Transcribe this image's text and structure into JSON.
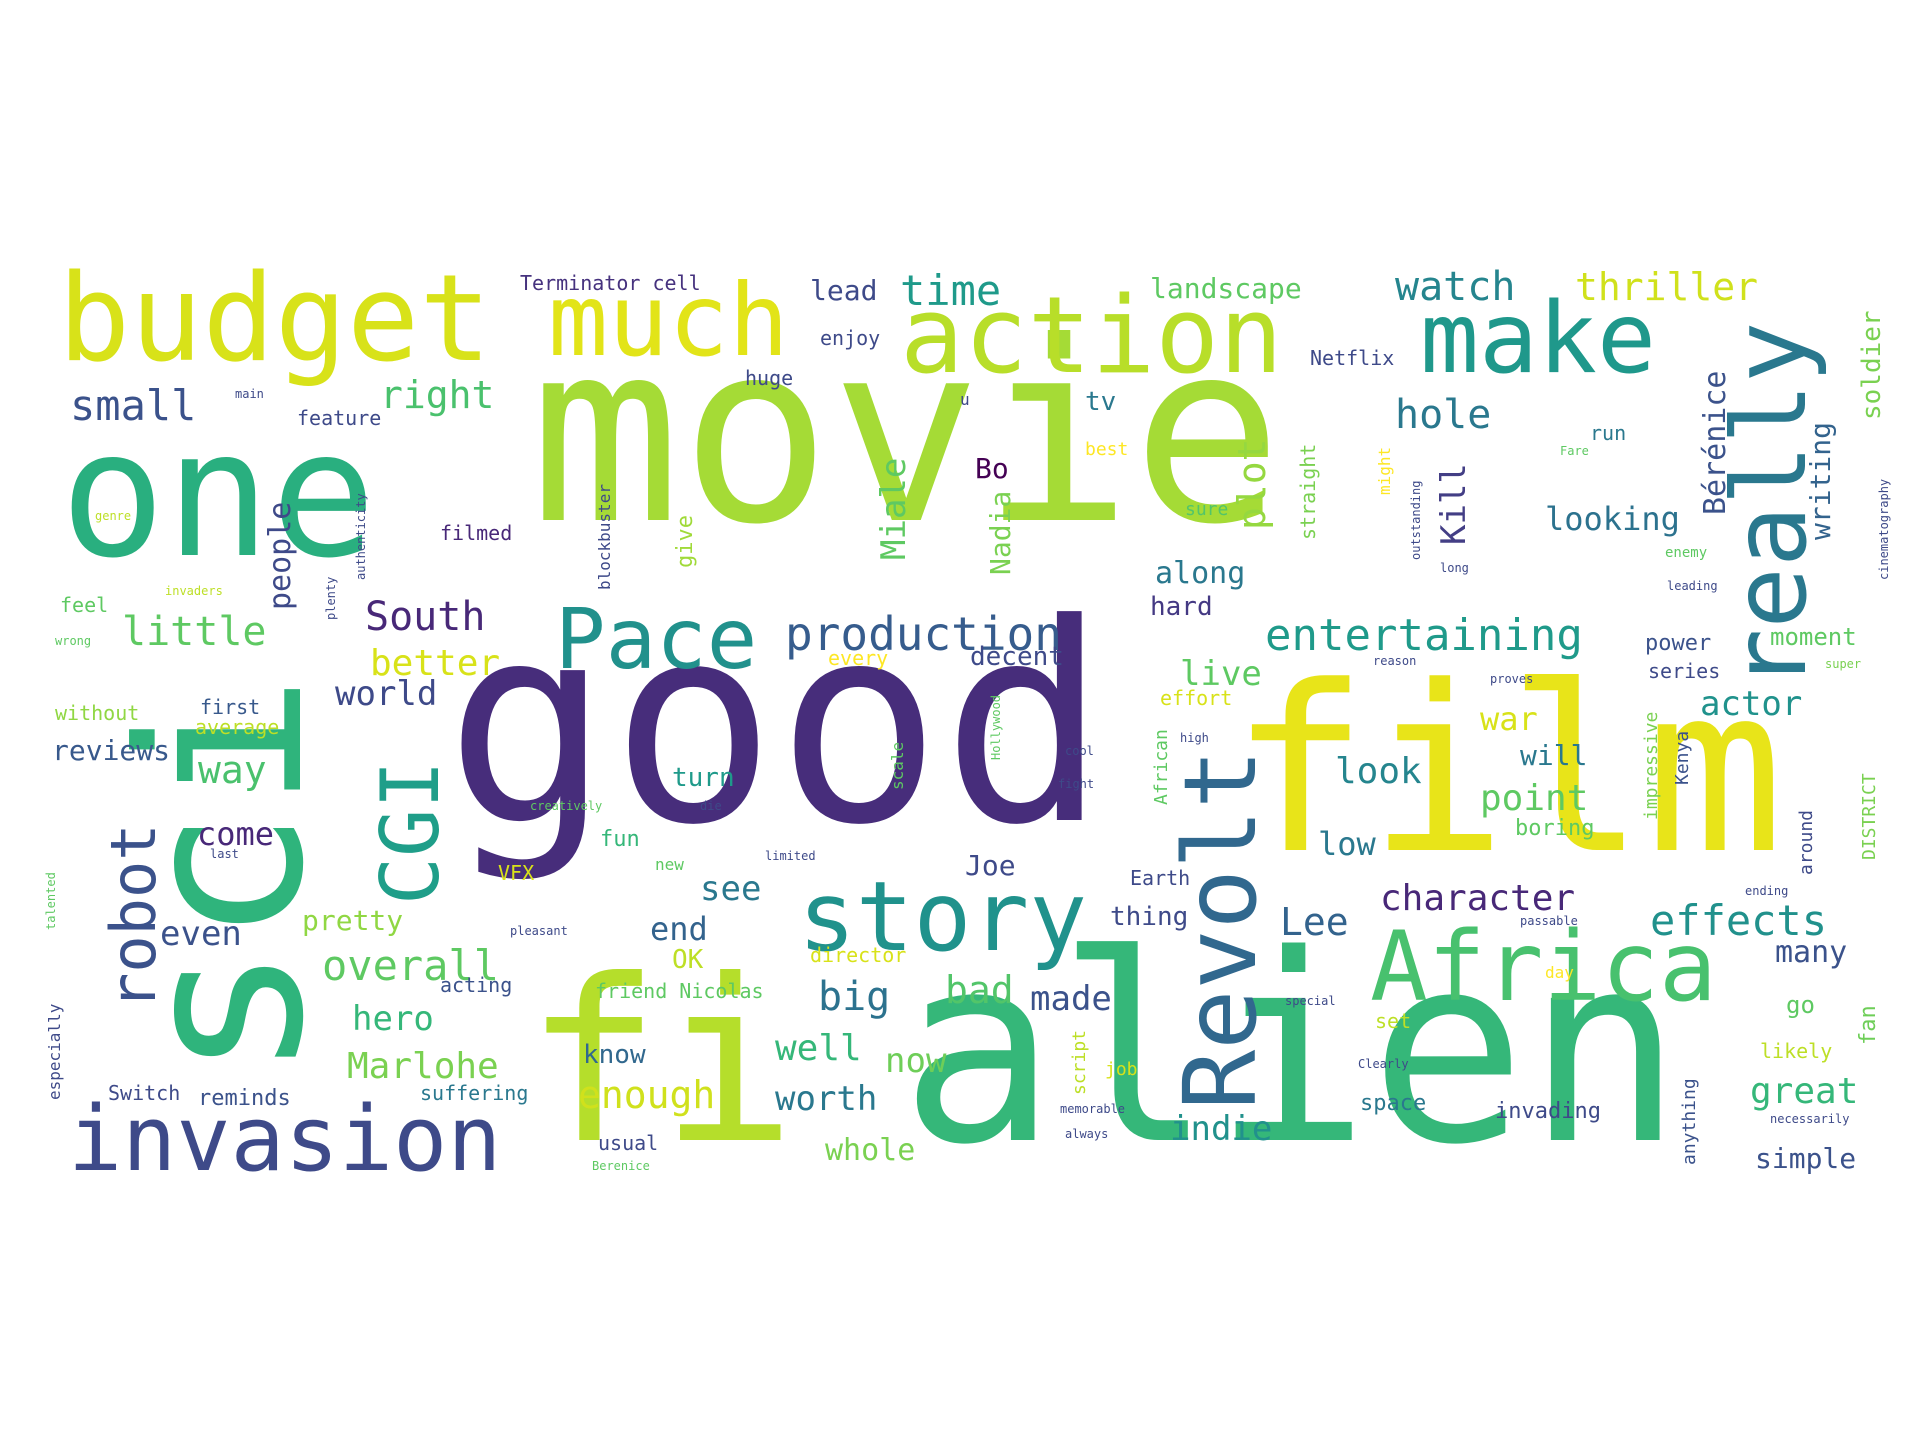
{
  "words": [
    {
      "text": "movie",
      "color": "#a5db36"
    },
    {
      "text": "good",
      "color": "#472d7b"
    },
    {
      "text": "film",
      "color": "#e8e419"
    },
    {
      "text": "alien",
      "color": "#35b779"
    },
    {
      "text": "sci",
      "color": "#2fb47c"
    },
    {
      "text": "fi",
      "color": "#b5de2b"
    },
    {
      "text": "one",
      "color": "#29af7f"
    },
    {
      "text": "budget",
      "color": "#d8e219"
    },
    {
      "text": "much",
      "color": "#e2e418"
    },
    {
      "text": "action",
      "color": "#b8de29"
    },
    {
      "text": "make",
      "color": "#1f988b"
    },
    {
      "text": "really",
      "color": "#2a788e"
    },
    {
      "text": "Revolt",
      "color": "#31688e"
    },
    {
      "text": "Africa",
      "color": "#48c16e"
    },
    {
      "text": "story",
      "color": "#20928c"
    },
    {
      "text": "invasion",
      "color": "#3e4a89"
    },
    {
      "text": "Pace",
      "color": "#21918c"
    },
    {
      "text": "CGI",
      "color": "#1f9e89"
    },
    {
      "text": "robot",
      "color": "#3b528b"
    },
    {
      "text": "production",
      "color": "#365c8d"
    },
    {
      "text": "entertaining",
      "color": "#1f9a8a"
    },
    {
      "text": "small",
      "color": "#3b528b"
    },
    {
      "text": "right",
      "color": "#4ac16d"
    },
    {
      "text": "time",
      "color": "#1f9a8a"
    },
    {
      "text": "watch",
      "color": "#25858e"
    },
    {
      "text": "thriller",
      "color": "#d0e11c"
    },
    {
      "text": "lead",
      "color": "#3e4a89"
    },
    {
      "text": "landscape",
      "color": "#5ec962"
    },
    {
      "text": "Terminator cell",
      "color": "#46327e"
    },
    {
      "text": "hole",
      "color": "#2a788e"
    },
    {
      "text": "plot",
      "color": "#95d840"
    },
    {
      "text": "Kill",
      "color": "#433e85"
    },
    {
      "text": "Bérénice",
      "color": "#3b528b"
    },
    {
      "text": "writing",
      "color": "#33638d"
    },
    {
      "text": "soldier",
      "color": "#7ad151"
    },
    {
      "text": "Miale",
      "color": "#5ec962"
    },
    {
      "text": "Nadia",
      "color": "#7ad151"
    },
    {
      "text": "Bo",
      "color": "#440154"
    },
    {
      "text": "looking",
      "color": "#2c728e"
    },
    {
      "text": "little",
      "color": "#5ec962"
    },
    {
      "text": "South",
      "color": "#482878"
    },
    {
      "text": "better",
      "color": "#d8e219"
    },
    {
      "text": "world",
      "color": "#3e4a89"
    },
    {
      "text": "people",
      "color": "#3e4a89"
    },
    {
      "text": "way",
      "color": "#4ac16d"
    },
    {
      "text": "reviews",
      "color": "#38598c"
    },
    {
      "text": "come",
      "color": "#482878"
    },
    {
      "text": "along",
      "color": "#2a788e"
    },
    {
      "text": "hard",
      "color": "#443983"
    },
    {
      "text": "live",
      "color": "#5ec962"
    },
    {
      "text": "war",
      "color": "#d8e219"
    },
    {
      "text": "actor",
      "color": "#20928c"
    },
    {
      "text": "will",
      "color": "#2a788e"
    },
    {
      "text": "look",
      "color": "#25858e"
    },
    {
      "text": "point",
      "color": "#5ec962"
    },
    {
      "text": "low",
      "color": "#2a788e"
    },
    {
      "text": "Joe",
      "color": "#3e4a89"
    },
    {
      "text": "character",
      "color": "#482878"
    },
    {
      "text": "effects",
      "color": "#21918c"
    },
    {
      "text": "Lee",
      "color": "#33638d"
    },
    {
      "text": "many",
      "color": "#3b528b"
    },
    {
      "text": "overall",
      "color": "#5ec962"
    },
    {
      "text": "even",
      "color": "#3b528b"
    },
    {
      "text": "pretty",
      "color": "#90d743"
    },
    {
      "text": "hero",
      "color": "#35b779"
    },
    {
      "text": "Marlohe",
      "color": "#7ad151"
    },
    {
      "text": "big",
      "color": "#2c728e"
    },
    {
      "text": "bad",
      "color": "#52c569"
    },
    {
      "text": "made",
      "color": "#3b528b"
    },
    {
      "text": "see",
      "color": "#2a788e"
    },
    {
      "text": "end",
      "color": "#33638d"
    },
    {
      "text": "well",
      "color": "#35b779"
    },
    {
      "text": "now",
      "color": "#6ece58"
    },
    {
      "text": "enough",
      "color": "#d0e11c"
    },
    {
      "text": "worth",
      "color": "#2a788e"
    },
    {
      "text": "whole",
      "color": "#7ad151"
    },
    {
      "text": "indie",
      "color": "#21918c"
    },
    {
      "text": "great",
      "color": "#35b779"
    },
    {
      "text": "simple",
      "color": "#3b528b"
    },
    {
      "text": "know",
      "color": "#31688e"
    },
    {
      "text": "OK",
      "color": "#bddf26"
    },
    {
      "text": "decent",
      "color": "#3e4a89"
    },
    {
      "text": "turn",
      "color": "#1f9a8a"
    },
    {
      "text": "fun",
      "color": "#35b779"
    },
    {
      "text": "thing",
      "color": "#3e4a89"
    },
    {
      "text": "Earth",
      "color": "#3e4a89"
    },
    {
      "text": "feature",
      "color": "#3e4a89"
    },
    {
      "text": "enjoy",
      "color": "#3e4a89"
    },
    {
      "text": "huge",
      "color": "#3e4a89"
    },
    {
      "text": "Netflix",
      "color": "#3e4a89"
    },
    {
      "text": "tv",
      "color": "#2a788e"
    },
    {
      "text": "filmed",
      "color": "#482878"
    },
    {
      "text": "feel",
      "color": "#5ec962"
    },
    {
      "text": "without",
      "color": "#90d743"
    },
    {
      "text": "first",
      "color": "#38598c"
    },
    {
      "text": "average",
      "color": "#bddf26"
    },
    {
      "text": "acting",
      "color": "#3b528b"
    },
    {
      "text": "friend Nicolas",
      "color": "#5ec962"
    },
    {
      "text": "director",
      "color": "#d8e219"
    },
    {
      "text": "reminds",
      "color": "#3b528b"
    },
    {
      "text": "suffering",
      "color": "#2a788e"
    },
    {
      "text": "Switch",
      "color": "#3e4a89"
    },
    {
      "text": "usual",
      "color": "#3e4a89"
    },
    {
      "text": "space",
      "color": "#2a788e"
    },
    {
      "text": "invading",
      "color": "#3e4a89"
    },
    {
      "text": "moment",
      "color": "#5ec962"
    },
    {
      "text": "power",
      "color": "#3b528b"
    },
    {
      "text": "series",
      "color": "#3e4a89"
    },
    {
      "text": "boring",
      "color": "#5ec962"
    },
    {
      "text": "fan",
      "color": "#6ece58"
    },
    {
      "text": "go",
      "color": "#5ec962"
    },
    {
      "text": "likely",
      "color": "#bddf26"
    },
    {
      "text": "give",
      "color": "#a0da39"
    },
    {
      "text": "blockbuster",
      "color": "#3e4a89"
    },
    {
      "text": "straight",
      "color": "#7ad151"
    },
    {
      "text": "sure",
      "color": "#52c569"
    },
    {
      "text": "best",
      "color": "#fde725"
    },
    {
      "text": "run",
      "color": "#2a788e"
    },
    {
      "text": "every",
      "color": "#fde725"
    },
    {
      "text": "effort",
      "color": "#d8e219"
    },
    {
      "text": "VFX",
      "color": "#d8e219"
    },
    {
      "text": "especially",
      "color": "#3e4a89"
    },
    {
      "text": "impressive",
      "color": "#7ad151"
    },
    {
      "text": "Kenya",
      "color": "#3b528b"
    },
    {
      "text": "DISTRICT",
      "color": "#7ad151"
    },
    {
      "text": "around",
      "color": "#3e4a89"
    },
    {
      "text": "African",
      "color": "#5ec962"
    },
    {
      "text": "scale",
      "color": "#5ec962"
    },
    {
      "text": "script",
      "color": "#bddf26"
    },
    {
      "text": "job",
      "color": "#d8e219"
    },
    {
      "text": "anything",
      "color": "#3b528b"
    },
    {
      "text": "genre",
      "color": "#bddf26"
    },
    {
      "text": "main",
      "color": "#3e4a89"
    },
    {
      "text": "wrong",
      "color": "#5ec962"
    },
    {
      "text": "plenty",
      "color": "#3e4a89"
    },
    {
      "text": "authenticity",
      "color": "#3e4a89"
    },
    {
      "text": "reason",
      "color": "#3e4a89"
    },
    {
      "text": "proves",
      "color": "#3e4a89"
    },
    {
      "text": "super",
      "color": "#7ad151"
    },
    {
      "text": "enemy",
      "color": "#5ec962"
    },
    {
      "text": "leading",
      "color": "#3e4a89"
    },
    {
      "text": "long",
      "color": "#3e4a89"
    },
    {
      "text": "cinematography",
      "color": "#3e4a89"
    },
    {
      "text": "outstanding",
      "color": "#3e4a89"
    },
    {
      "text": "might",
      "color": "#fde725"
    },
    {
      "text": "invaders",
      "color": "#bddf26"
    },
    {
      "text": "limited",
      "color": "#3e4a89"
    },
    {
      "text": "pleasant",
      "color": "#3e4a89"
    },
    {
      "text": "talented",
      "color": "#5ec962"
    },
    {
      "text": "creatively",
      "color": "#5ec962"
    },
    {
      "text": "die",
      "color": "#3e4a89"
    },
    {
      "text": "fight",
      "color": "#3e4a89"
    },
    {
      "text": "cool",
      "color": "#3e4a89"
    },
    {
      "text": "high",
      "color": "#3e4a89"
    },
    {
      "text": "memorable",
      "color": "#3e4a89"
    },
    {
      "text": "always",
      "color": "#3e4a89"
    },
    {
      "text": "Clearly",
      "color": "#3e4a89"
    },
    {
      "text": "ending",
      "color": "#3e4a89"
    },
    {
      "text": "passable",
      "color": "#3e4a89"
    },
    {
      "text": "day",
      "color": "#fde725"
    },
    {
      "text": "special",
      "color": "#3e4a89"
    },
    {
      "text": "set",
      "color": "#bddf26"
    },
    {
      "text": "necessarily",
      "color": "#3e4a89"
    },
    {
      "text": "Berenice",
      "color": "#5ec962"
    },
    {
      "text": "new",
      "color": "#5ec962"
    },
    {
      "text": "last",
      "color": "#3e4a89"
    },
    {
      "text": "Hollywood",
      "color": "#5ec962"
    },
    {
      "text": "u",
      "color": "#3e4a89"
    },
    {
      "text": "Fare",
      "color": "#5ec962"
    }
  ]
}
